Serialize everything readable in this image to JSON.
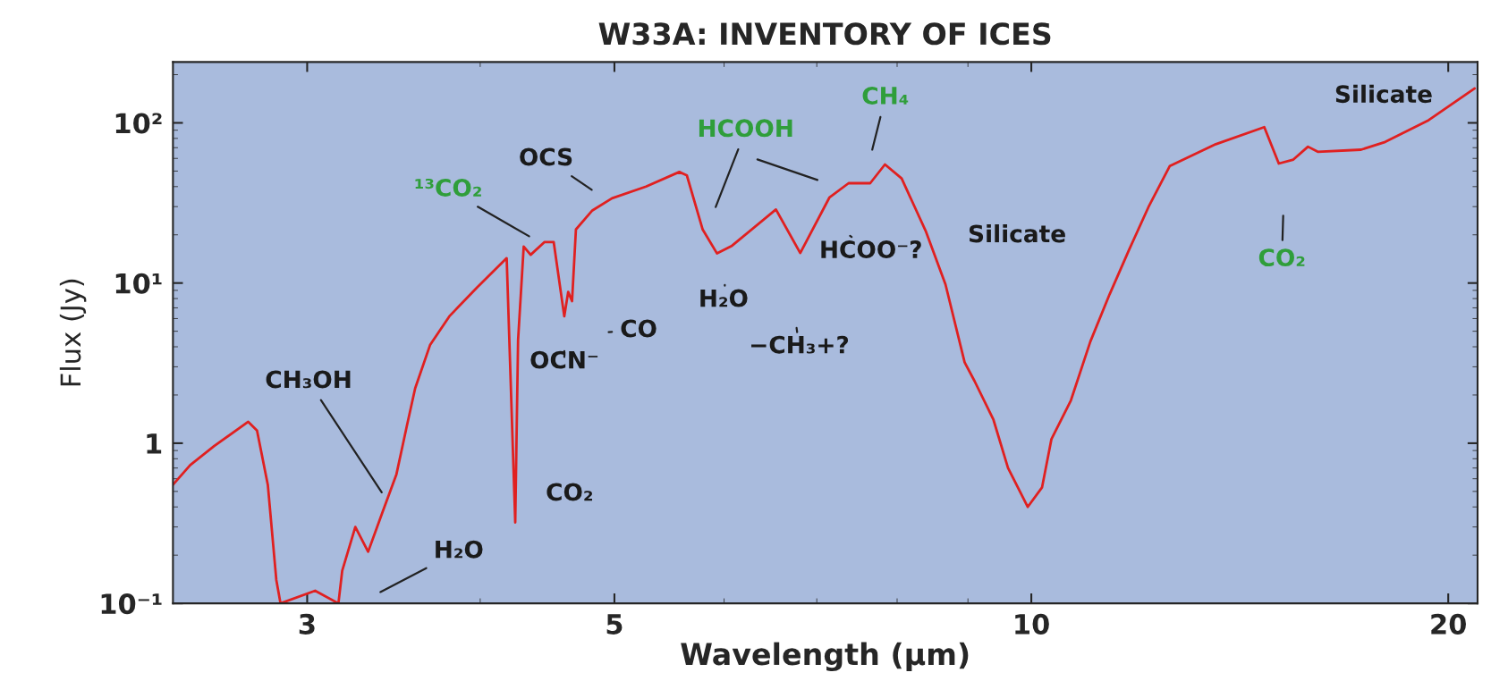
{
  "chart_data": {
    "type": "line",
    "title": "W33A: INVENTORY OF ICES",
    "xlabel": "Wavelength (μm)",
    "ylabel": "Flux (Jy)",
    "log": "xy",
    "xlim": [
      2.4,
      21
    ],
    "ylim": [
      0.1,
      240
    ],
    "xticks": [
      3,
      5,
      10,
      20
    ],
    "yticks": [
      {
        "value": 0.1,
        "label": "10⁻¹"
      },
      1,
      {
        "value": 10,
        "label": "10¹"
      },
      {
        "value": 100,
        "label": "10²"
      }
    ],
    "x": [
      2.4,
      2.47,
      2.57,
      2.72,
      2.76,
      2.81,
      2.85,
      2.87,
      3.04,
      3.16,
      3.18,
      3.25,
      3.32,
      3.4,
      3.48,
      3.54,
      3.59,
      3.68,
      3.8,
      3.98,
      4.18,
      4.24,
      4.26,
      4.3,
      4.35,
      4.45,
      4.52,
      4.6,
      4.63,
      4.66,
      4.69,
      4.82,
      4.98,
      5.27,
      5.57,
      5.64,
      5.79,
      5.93,
      6.08,
      6.54,
      6.81,
      7.15,
      7.38,
      7.65,
      7.84,
      8.06,
      8.39,
      8.67,
      8.95,
      9.1,
      9.39,
      9.62,
      9.94,
      10.18,
      10.34,
      10.68,
      11.03,
      11.39,
      11.76,
      12.15,
      12.59,
      13.59,
      14.73,
      15.09,
      15.46,
      15.84,
      16.1,
      17.3,
      18.01,
      19.36,
      20.9
    ],
    "series": [
      {
        "color": "#e02020",
        "values": [
          0.55,
          0.73,
          0.96,
          1.36,
          1.2,
          0.55,
          0.14,
          0.1,
          0.12,
          0.1,
          0.16,
          0.3,
          0.21,
          0.37,
          0.64,
          1.27,
          2.2,
          4.1,
          6.2,
          9.4,
          14.3,
          0.32,
          4.4,
          16.9,
          15,
          18,
          18,
          6.2,
          8.8,
          7.7,
          21.6,
          28.4,
          33.8,
          40,
          49.4,
          47,
          21.6,
          15.3,
          17.1,
          28.8,
          15.4,
          34.3,
          42,
          42,
          55,
          45,
          21.1,
          9.8,
          3.2,
          2.44,
          1.4,
          0.7,
          0.4,
          0.53,
          1.06,
          1.85,
          4.3,
          8.5,
          16.0,
          29.8,
          53.8,
          73.6,
          94,
          55.7,
          59,
          71,
          66,
          68,
          76,
          104,
          164
        ]
      }
    ],
    "annotations": [
      "¹³CO₂",
      "OCS",
      "HCOOH",
      "CH₄",
      "HCOO⁻?",
      "Silicate",
      "CO₂",
      "Silicate",
      "H₂O",
      "−CH₃+?",
      "CO",
      "OCN⁻",
      "CH₃OH",
      "CO₂",
      "H₂O"
    ]
  }
}
